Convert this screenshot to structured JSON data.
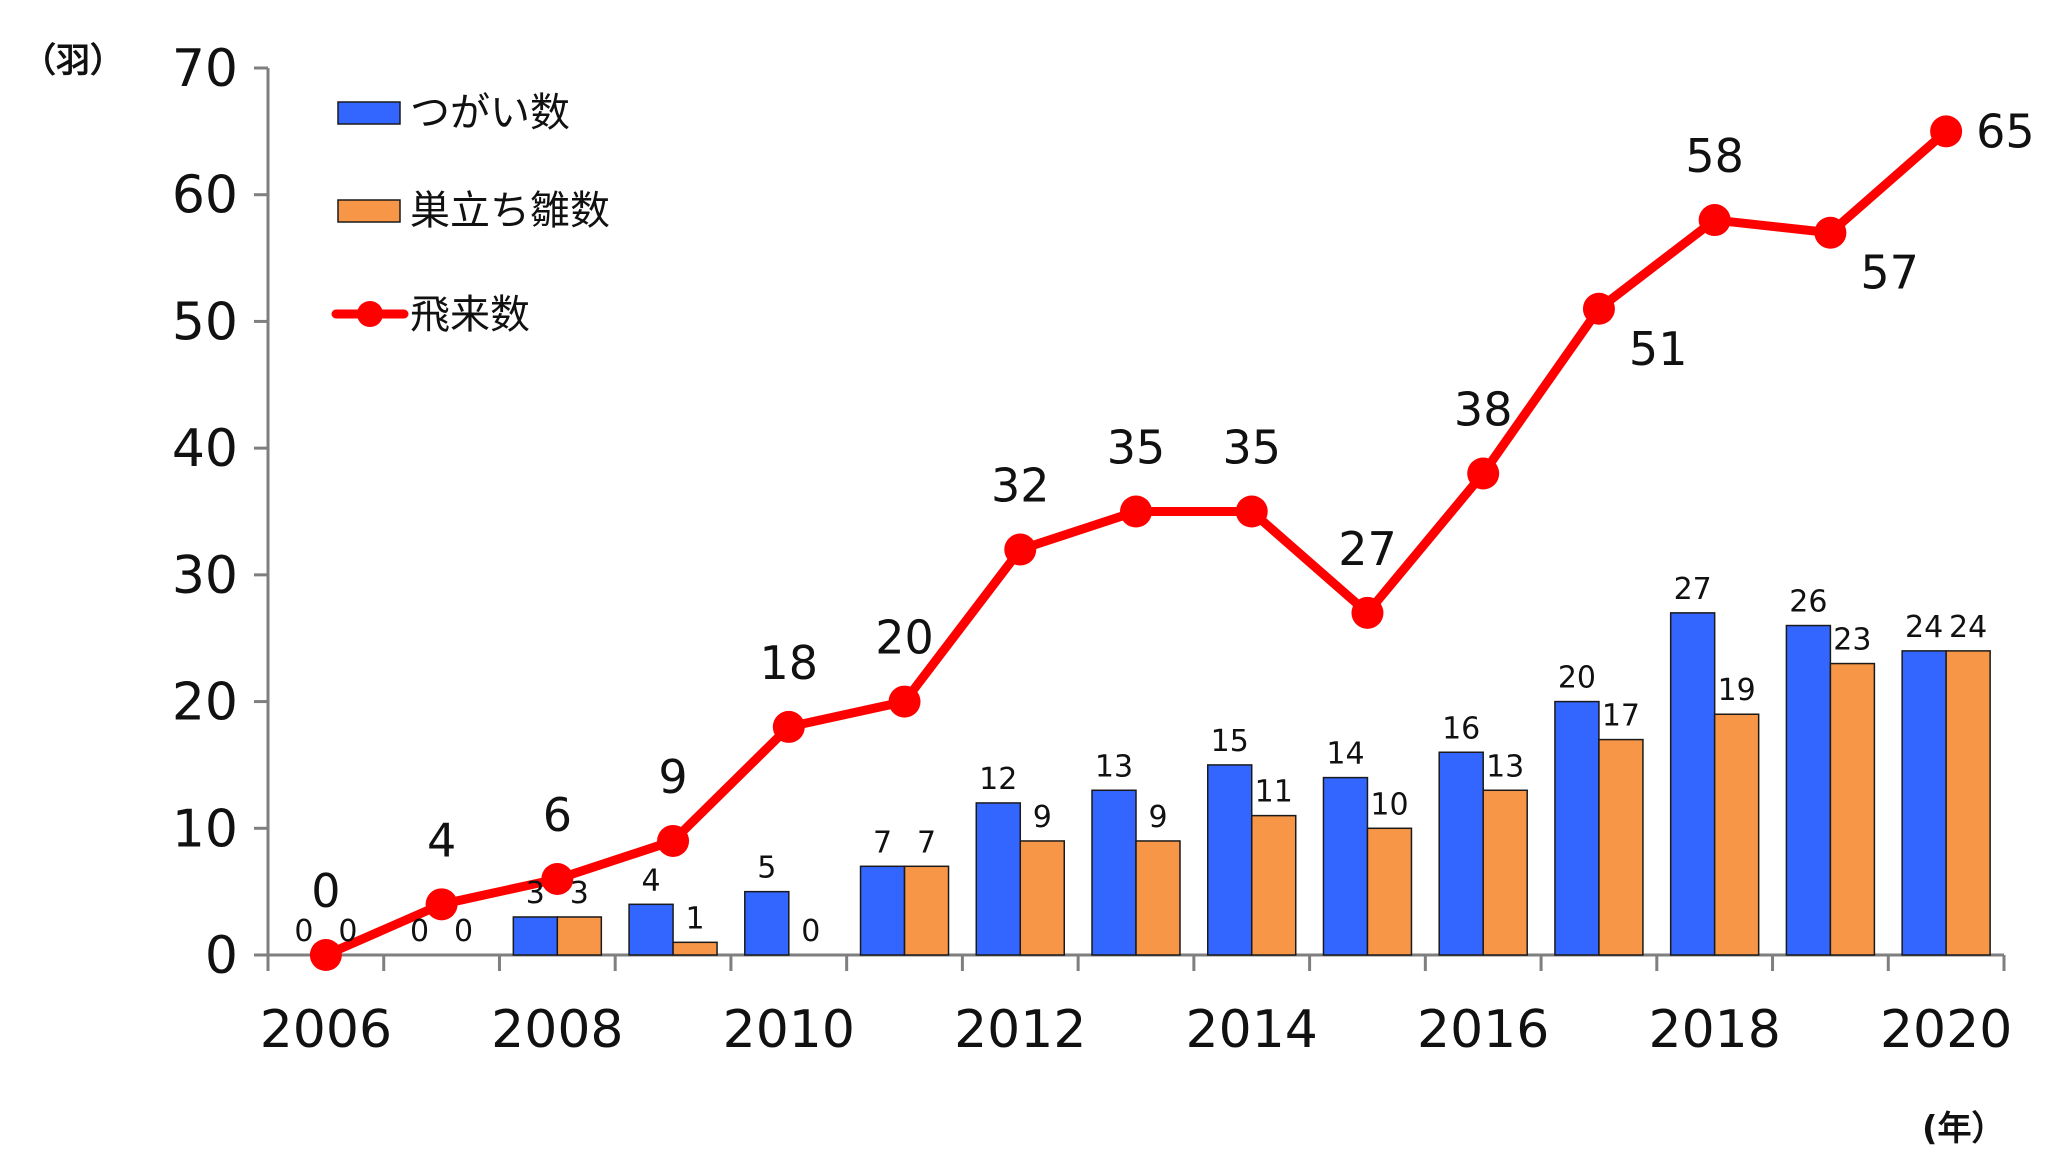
{
  "chart_data": {
    "type": "bar",
    "categories": [
      "2006",
      "2007",
      "2008",
      "2009",
      "2010",
      "2011",
      "2012",
      "2013",
      "2014",
      "2015",
      "2016",
      "2017",
      "2018",
      "2019",
      "2020"
    ],
    "x_tick_labels": [
      "2006",
      "2008",
      "2010",
      "2012",
      "2014",
      "2016",
      "2018",
      "2020"
    ],
    "y_tick_labels": [
      "0",
      "10",
      "20",
      "30",
      "40",
      "50",
      "60",
      "70"
    ],
    "ylim": [
      0,
      70
    ],
    "y_unit": "（羽）",
    "x_unit": "(年）",
    "grid": false,
    "legend_position": "top-left",
    "series": [
      {
        "name": "つがい数",
        "type": "bar",
        "color": "#3366ff",
        "values": [
          0,
          0,
          3,
          4,
          5,
          7,
          12,
          13,
          15,
          14,
          16,
          20,
          27,
          26,
          24
        ]
      },
      {
        "name": "巣立ち雛数",
        "type": "bar",
        "color": "#f79646",
        "values": [
          0,
          0,
          3,
          1,
          0,
          7,
          9,
          9,
          11,
          10,
          13,
          17,
          19,
          23,
          24
        ]
      },
      {
        "name": "飛来数",
        "type": "line",
        "color": "#ff0000",
        "values": [
          0,
          4,
          6,
          9,
          18,
          20,
          32,
          35,
          35,
          27,
          38,
          51,
          58,
          57,
          65
        ]
      }
    ]
  }
}
